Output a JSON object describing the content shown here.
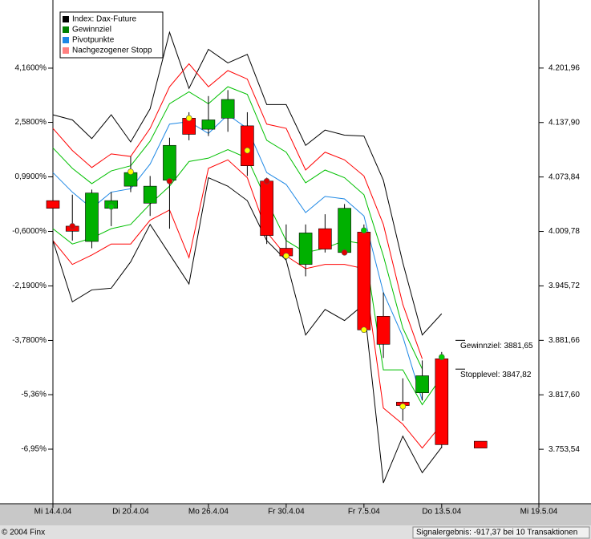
{
  "chart_data": {
    "type": "candlestick",
    "categories": [
      "Mi 14.4.04",
      null,
      null,
      null,
      "Di 20.4.04",
      null,
      null,
      null,
      "Mo 26.4.04",
      null,
      null,
      null,
      "Fr 30.4.04",
      null,
      null,
      null,
      "Fr 7.5.04",
      null,
      null,
      null,
      "Do 13.5.04",
      null,
      null,
      null,
      null,
      "Mi 19.5.04"
    ],
    "open": [
      4046,
      4016,
      3998,
      4037,
      4063,
      4043,
      4070,
      4143,
      4130,
      4143,
      4134,
      4069,
      3990,
      3971,
      4013,
      3985,
      4009,
      3910,
      3809,
      3820,
      3860,
      null,
      3763,
      null,
      null,
      null
    ],
    "high": [
      4048,
      4053,
      4059,
      4056,
      4098,
      4075,
      4120,
      4150,
      4169,
      4176,
      4150,
      4073,
      4018,
      4018,
      4030,
      4042,
      4018,
      3938,
      3837,
      3858,
      3868,
      null,
      3763,
      null,
      null,
      null
    ],
    "low": [
      4035,
      3999,
      3990,
      4016,
      4056,
      4028,
      4013,
      4117,
      4122,
      4127,
      4075,
      3995,
      3976,
      3957,
      3985,
      3982,
      3891,
      3861,
      3787,
      3811,
      3755,
      null,
      3755,
      null,
      null,
      null
    ],
    "close": [
      4037,
      4010,
      4055,
      4046,
      4079,
      4063,
      4111,
      4124,
      4141,
      4165,
      4087,
      4005,
      3981,
      4008,
      3989,
      4037,
      3894,
      3877,
      3805,
      3840,
      3759,
      null,
      3755,
      null,
      null,
      null
    ],
    "up_color": "#00b000",
    "down_color": "#ff0000",
    "lines": [
      {
        "color": "#000000",
        "values": [
          4147,
          4141,
          4119,
          4147,
          4115,
          4154,
          4244,
          4178,
          4224,
          4208,
          4218,
          4159,
          4159,
          4111,
          4129,
          4123,
          4122,
          4070,
          3973,
          3888,
          3913,
          null,
          null,
          null,
          null,
          null
        ]
      },
      {
        "color": "#ff0000",
        "values": [
          4131,
          4105,
          4085,
          4101,
          4098,
          4131,
          4180,
          4207,
          4180,
          4199,
          4189,
          4136,
          4131,
          4082,
          4103,
          4094,
          4075,
          4018,
          3924,
          3860,
          null,
          null,
          null,
          null,
          null,
          null
        ]
      },
      {
        "color": "#00c000",
        "values": [
          4108,
          4084,
          4066,
          4081,
          4087,
          4116,
          4160,
          4174,
          4160,
          4180,
          4171,
          4117,
          4103,
          4067,
          4082,
          4073,
          4053,
          3981,
          3896,
          3848,
          null,
          null,
          null,
          null,
          null,
          null
        ]
      },
      {
        "color": "#1e88e5",
        "values": [
          4079,
          4056,
          4037,
          4056,
          4060,
          4089,
          4136,
          4139,
          4125,
          4147,
          4131,
          4079,
          4065,
          4032,
          4051,
          4048,
          4028,
          3938,
          3886,
          3811,
          null,
          null,
          null,
          null,
          null,
          null
        ]
      },
      {
        "color": "#00c000",
        "values": [
          4013,
          3995,
          4002,
          4013,
          4018,
          4042,
          4063,
          4092,
          4096,
          4106,
          4096,
          4046,
          3999,
          3985,
          3990,
          3999,
          3995,
          3847,
          3847,
          3806,
          3839,
          null,
          null,
          null,
          null,
          null
        ]
      },
      {
        "color": "#ff0000",
        "values": [
          3999,
          3971,
          3982,
          3995,
          3995,
          4023,
          4035,
          3979,
          4084,
          4094,
          4073,
          4009,
          3981,
          3966,
          3971,
          3971,
          3966,
          3802,
          3783,
          3755,
          3783,
          null,
          null,
          null,
          null,
          null
        ]
      },
      {
        "color": "#000000",
        "values": [
          3999,
          3927,
          3941,
          3943,
          3974,
          4018,
          3983,
          3948,
          4073,
          4063,
          4046,
          3999,
          3976,
          3888,
          3918,
          3905,
          3924,
          3714,
          3769,
          3726,
          3756,
          null,
          null,
          null,
          null,
          null
        ]
      }
    ],
    "markers": [
      {
        "color": "#ffff00",
        "values": [
          null,
          null,
          null,
          null,
          4080,
          null,
          null,
          4143,
          null,
          null,
          4105,
          null,
          3981,
          null,
          null,
          null,
          3894,
          null,
          3804,
          null,
          null,
          null,
          null,
          null,
          null,
          null
        ]
      },
      {
        "color": "#e00000",
        "values": [
          null,
          4016,
          null,
          null,
          null,
          null,
          4069,
          null,
          null,
          null,
          null,
          4069,
          null,
          null,
          null,
          3985,
          null,
          null,
          null,
          null,
          null,
          null,
          null,
          null,
          null,
          null
        ]
      },
      {
        "color": "#00d000",
        "values": [
          null,
          null,
          null,
          4039,
          null,
          null,
          null,
          null,
          null,
          null,
          null,
          null,
          null,
          null,
          null,
          null,
          4011,
          null,
          null,
          null,
          3862,
          null,
          null,
          null,
          null,
          null
        ]
      }
    ],
    "ylim": [
      3689.5,
      4277.3
    ],
    "yticks": [
      {
        "value": 4201.96,
        "label": "4.201,96"
      },
      {
        "value": 4137.9,
        "label": "4.137,90"
      },
      {
        "value": 4073.84,
        "label": "4.073,84"
      },
      {
        "value": 4009.78,
        "label": "4.009,78"
      },
      {
        "value": 3945.72,
        "label": "3.945,72"
      },
      {
        "value": 3881.66,
        "label": "3.881,66"
      },
      {
        "value": 3817.6,
        "label": "3.817,60"
      },
      {
        "value": 3753.54,
        "label": "3.753,54"
      }
    ],
    "y2lim": [
      -8.54,
      6.03
    ],
    "y2ticks": [
      {
        "value": 4.16,
        "label": "4,1600%"
      },
      {
        "value": 2.58,
        "label": "2,5800%"
      },
      {
        "value": 0.99,
        "label": "0,9900%"
      },
      {
        "value": -0.6,
        "label": "-0,6000%"
      },
      {
        "value": -2.19,
        "label": "-2,1900%"
      },
      {
        "value": -3.78,
        "label": "-3,7800%"
      },
      {
        "value": -5.36,
        "label": "-5,36%"
      },
      {
        "value": -6.95,
        "label": "-6,95%"
      }
    ],
    "legend": [
      {
        "name": "Index: Dax-Future",
        "color": "#000000"
      },
      {
        "name": "Gewinnziel",
        "color": "#008000"
      },
      {
        "name": "Pivotpunkte",
        "color": "#1e88e5"
      },
      {
        "name": "Nachgezogener Stopp",
        "color": "#ff8080"
      }
    ],
    "annotations": [
      {
        "text": "Gewinnziel: 3881,65",
        "value": 3881.65
      },
      {
        "text": "Stopplevel: 3847,82",
        "value": 3847.82
      }
    ],
    "footer_left": "© 2004 Finx",
    "footer_right": "Signalergebnis: -917,37 bei 10 Transaktionen"
  }
}
